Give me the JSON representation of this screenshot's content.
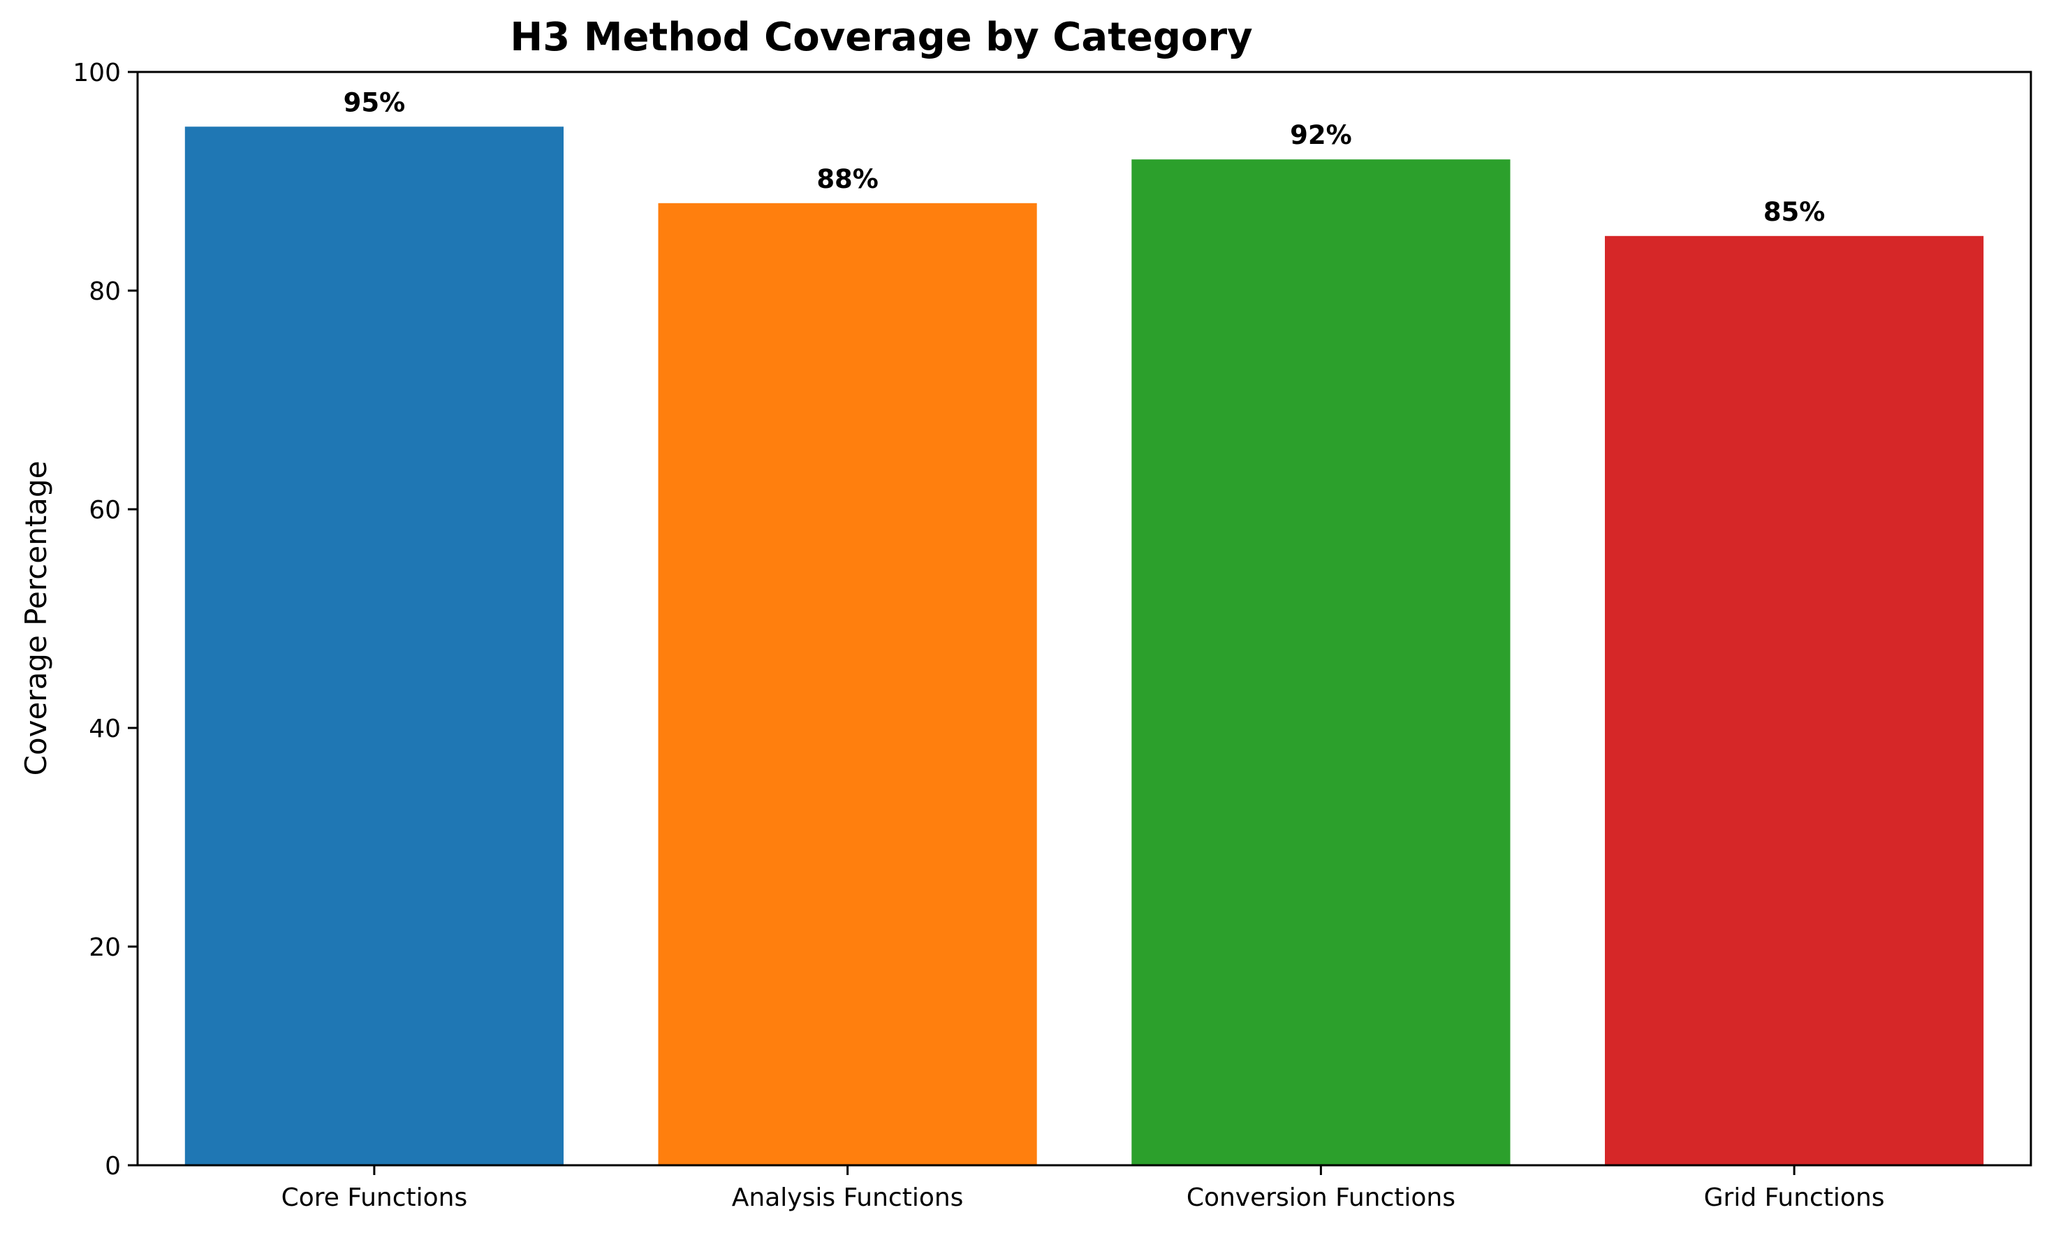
{
  "chart_data": {
    "type": "bar",
    "title": "H3 Method Coverage by Category",
    "xlabel": "",
    "ylabel": "Coverage Percentage",
    "categories": [
      "Core Functions",
      "Analysis Functions",
      "Conversion Functions",
      "Grid Functions"
    ],
    "values": [
      95,
      88,
      92,
      85
    ],
    "data_labels": [
      "95%",
      "88%",
      "92%",
      "85%"
    ],
    "colors": [
      "#1f77b4",
      "#ff7f0e",
      "#2ca02c",
      "#d62728"
    ],
    "ylim": [
      0,
      100
    ],
    "yticks": [
      0,
      20,
      40,
      60,
      80,
      100
    ],
    "grid": false,
    "legend": "none"
  }
}
